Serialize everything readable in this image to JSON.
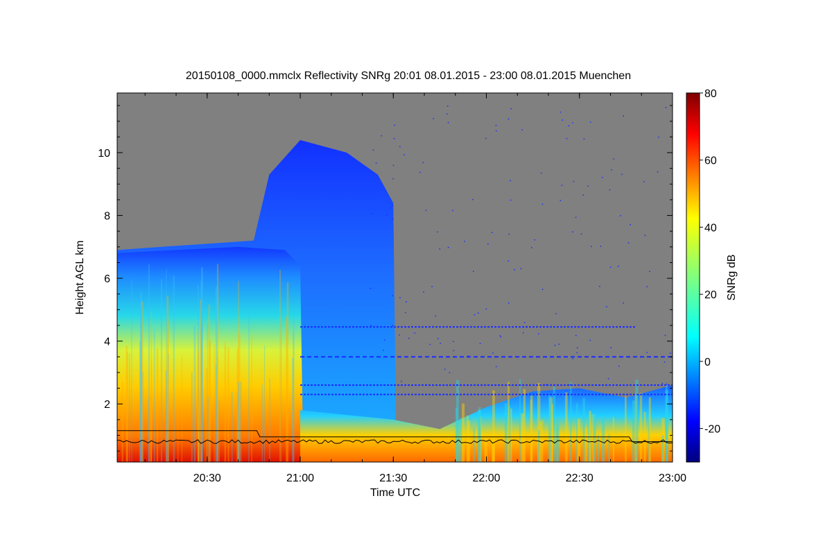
{
  "chart_data": {
    "type": "heatmap",
    "title": "20150108_0000.mmclx Reflectivity SNRg   20:01 08.01.2015 - 23:00 08.01.2015 Muenchen",
    "xlabel": "Time UTC",
    "ylabel": "Height AGL km",
    "x_range": [
      "20:01",
      "23:00"
    ],
    "y_range_km": [
      0.15,
      11.9
    ],
    "x_ticks": [
      "20:30",
      "21:00",
      "21:30",
      "22:00",
      "22:30",
      "23:00"
    ],
    "y_ticks": [
      2,
      4,
      6,
      8,
      10
    ],
    "colorbar": {
      "label": "SNRg dB",
      "range": [
        -30,
        80
      ],
      "ticks": [
        -20,
        0,
        20,
        40,
        60,
        80
      ],
      "colormap": "jet"
    },
    "background_color": "#808080",
    "cloud_top_profile_km": [
      {
        "time": "20:01",
        "top": 6.9
      },
      {
        "time": "20:15",
        "top": 7.0
      },
      {
        "time": "20:30",
        "top": 7.1
      },
      {
        "time": "20:45",
        "top": 7.2
      },
      {
        "time": "20:50",
        "top": 9.3
      },
      {
        "time": "21:00",
        "top": 10.4
      },
      {
        "time": "21:15",
        "top": 10.0
      },
      {
        "time": "21:25",
        "top": 9.3
      },
      {
        "time": "21:30",
        "top": 8.4
      },
      {
        "time": "21:31",
        "top": 0.0
      }
    ],
    "low_cloud_profile_km": [
      {
        "time": "21:00",
        "top": 1.8
      },
      {
        "time": "21:30",
        "top": 1.5
      },
      {
        "time": "21:45",
        "top": 1.2
      },
      {
        "time": "22:00",
        "top": 1.9
      },
      {
        "time": "22:15",
        "top": 2.4
      },
      {
        "time": "22:30",
        "top": 2.5
      },
      {
        "time": "22:45",
        "top": 2.2
      },
      {
        "time": "23:00",
        "top": 2.6
      }
    ],
    "lines_km": {
      "upper_line": [
        {
          "time": "20:01",
          "h": 1.15
        },
        {
          "time": "20:46",
          "h": 1.15
        },
        {
          "time": "20:47",
          "h": 0.95
        },
        {
          "time": "22:46",
          "h": 0.95
        },
        {
          "time": "22:47",
          "h": 0.8
        },
        {
          "time": "23:00",
          "h": 0.8
        }
      ],
      "lower_line_mean_km": 0.8
    }
  }
}
